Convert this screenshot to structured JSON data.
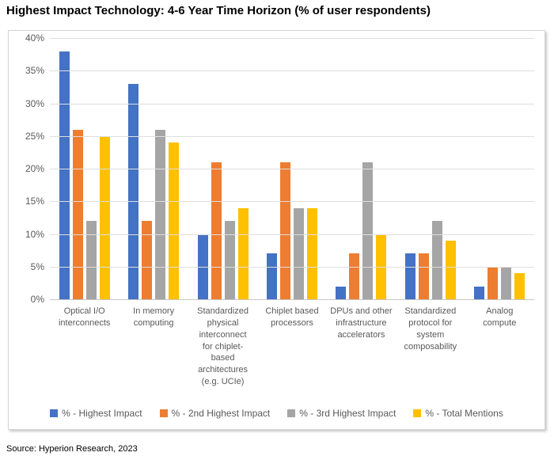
{
  "page": {
    "title": "Highest Impact Technology: 4-6 Year Time Horizon (% of user respondents)",
    "source": "Source: Hyperion Research, 2023"
  },
  "chart_data": {
    "type": "bar",
    "title": "Highest Impact Technology: 4-6 Year Time Horizon (% of user respondents)",
    "xlabel": "",
    "ylabel": "",
    "ylim": [
      0,
      40
    ],
    "y_tick_step": 5,
    "y_ticks": [
      "0%",
      "5%",
      "10%",
      "15%",
      "20%",
      "25%",
      "30%",
      "35%",
      "40%"
    ],
    "grid": true,
    "legend_position": "bottom",
    "categories": [
      "Optical I/O interconnects",
      "In memory computing",
      "Standardized physical interconnect for chiplet-based architectures (e.g. UCIe)",
      "Chiplet based processors",
      "DPUs and other infrastructure accelerators",
      "Standardized protocol for system composability",
      "Analog compute"
    ],
    "category_display": [
      "Optical I/O\ninterconnects",
      "In memory\ncomputing",
      "Standardized\nphysical\ninterconnect\nfor chiplet-\nbased\narchitectures\n(e.g. UCIe)",
      "Chiplet based\nprocessors",
      "DPUs and other\ninfrastructure\naccelerators",
      "Standardized\nprotocol for\nsystem\ncomposability",
      "Analog\ncompute"
    ],
    "series": [
      {
        "name": "% - Highest Impact",
        "color": "#4472C4",
        "values": [
          38,
          33,
          10,
          7,
          2,
          7,
          2
        ]
      },
      {
        "name": "% - 2nd Highest Impact",
        "color": "#ED7D31",
        "values": [
          26,
          12,
          21,
          21,
          7,
          7,
          5
        ]
      },
      {
        "name": "% - 3rd Highest Impact",
        "color": "#A5A5A5",
        "values": [
          12,
          26,
          12,
          14,
          21,
          12,
          5
        ]
      },
      {
        "name": "% - Total Mentions",
        "color": "#FFC000",
        "values": [
          25,
          24,
          14,
          14,
          10,
          9,
          4
        ]
      }
    ]
  }
}
